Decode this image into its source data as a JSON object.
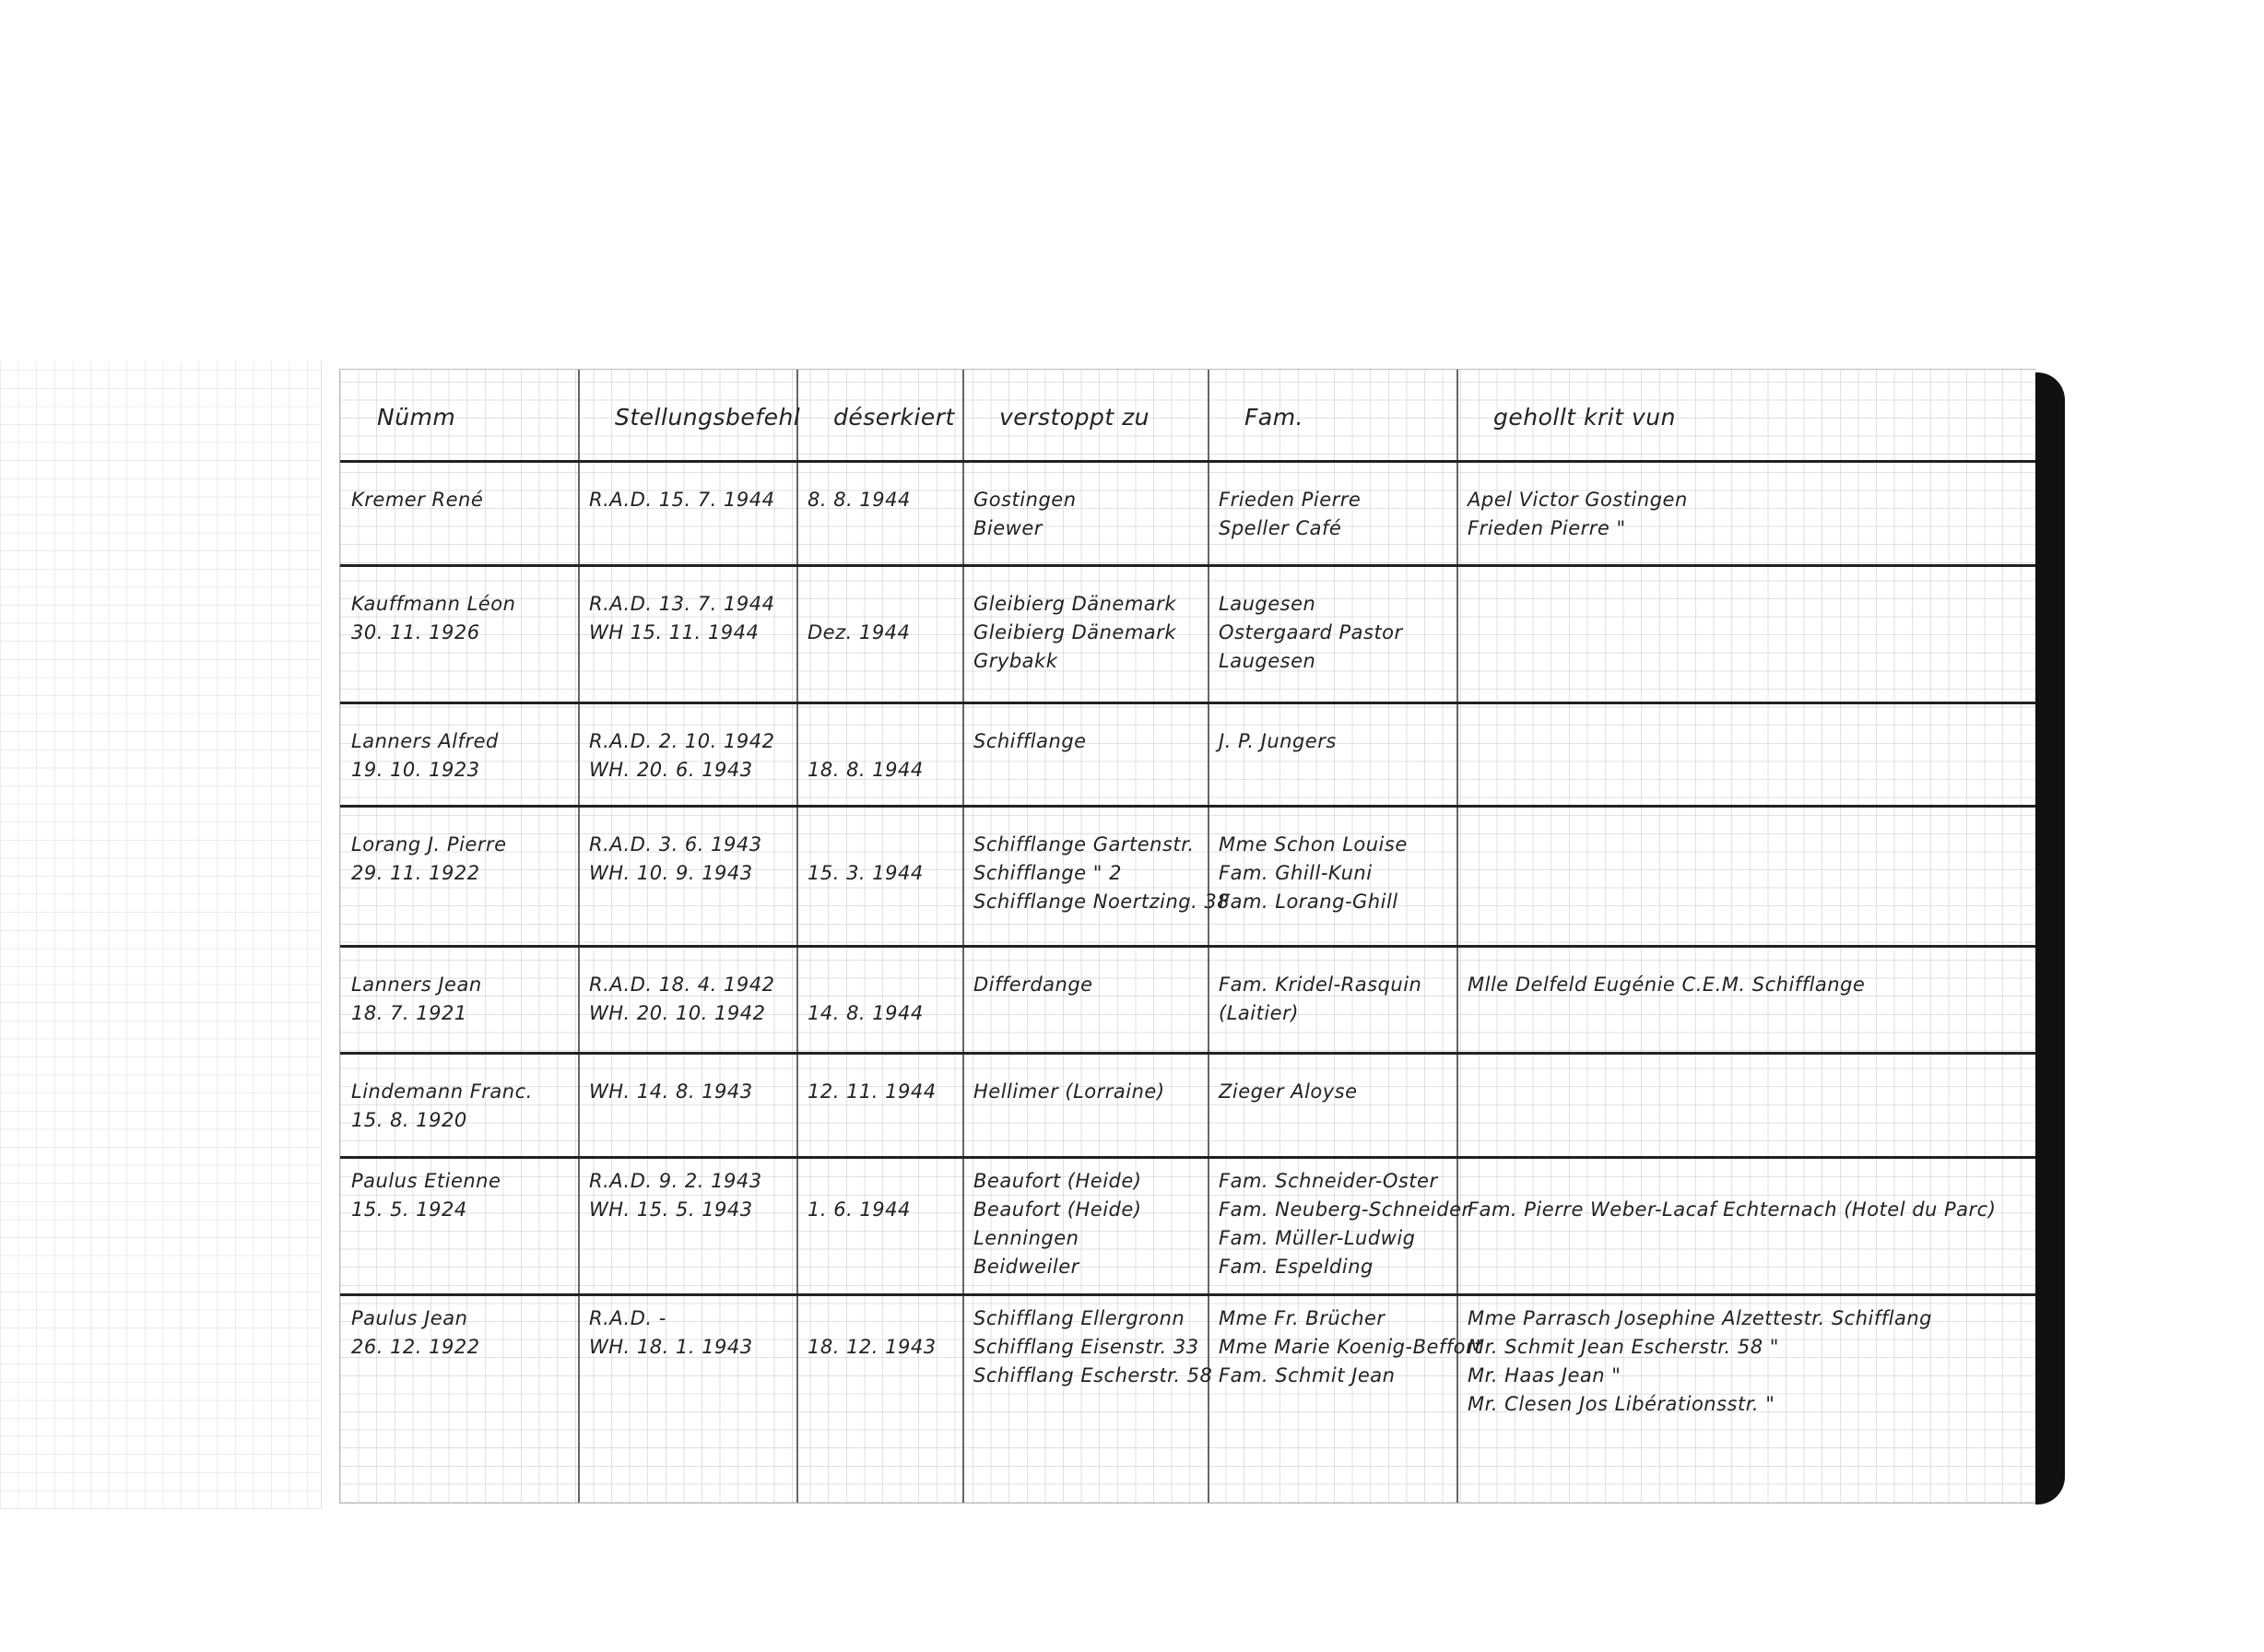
{
  "headers": [
    "Nümm",
    "Stellungsbefehl",
    "déserkiert",
    "verstoppt zu",
    "Fam.",
    "gehollt krit vun"
  ],
  "rows": [
    {
      "name": [
        "Kremer   René"
      ],
      "order": [
        "R.A.D. 15. 7. 1944"
      ],
      "deserted": [
        "8. 8. 1944"
      ],
      "hidden": [
        "Gostingen",
        "Biewer"
      ],
      "family": [
        "Frieden Pierre",
        "Speller Café"
      ],
      "fetched": [
        "Apel Victor Gostingen",
        "Frieden Pierre    \""
      ]
    },
    {
      "name": [
        "Kauffmann Léon",
        "  30. 11. 1926"
      ],
      "order": [
        "R.A.D. 13. 7. 1944",
        "WH    15. 11. 1944"
      ],
      "deserted": [
        "",
        "Dez. 1944"
      ],
      "hidden": [
        "Gleibierg Dänemark",
        "Gleibierg Dänemark",
        "Grybakk"
      ],
      "family": [
        "Laugesen",
        "Ostergaard Pastor",
        "Laugesen"
      ],
      "fetched": []
    },
    {
      "name": [
        "Lanners Alfred",
        "  19. 10. 1923"
      ],
      "order": [
        "R.A.D.  2. 10. 1942",
        "WH.   20. 6. 1943"
      ],
      "deserted": [
        "",
        "18. 8. 1944"
      ],
      "hidden": [
        "Schifflange"
      ],
      "family": [
        "J. P. Jungers"
      ],
      "fetched": []
    },
    {
      "name": [
        "Lorang J. Pierre",
        "  29. 11. 1922"
      ],
      "order": [
        "R.A.D.  3. 6. 1943",
        "WH.   10. 9. 1943"
      ],
      "deserted": [
        "",
        "15. 3. 1944"
      ],
      "hidden": [
        "Schifflange Gartenstr.",
        "Schifflange  \"   2",
        "Schifflange Noertzing. 38"
      ],
      "family": [
        "Mme Schon Louise",
        "Fam. Ghill-Kuni",
        "Fam. Lorang-Ghill"
      ],
      "fetched": []
    },
    {
      "name": [
        "Lanners Jean",
        "  18. 7. 1921"
      ],
      "order": [
        "R.A.D. 18. 4. 1942",
        "WH.   20. 10. 1942"
      ],
      "deserted": [
        "",
        "14. 8. 1944"
      ],
      "hidden": [
        "Differdange"
      ],
      "family": [
        "Fam. Kridel-Rasquin",
        "         (Laitier)"
      ],
      "fetched": [
        "Mlle Delfeld Eugénie C.E.M. Schifflange"
      ]
    },
    {
      "name": [
        "Lindemann Franc.",
        "  15. 8. 1920"
      ],
      "order": [
        "WH.  14. 8. 1943"
      ],
      "deserted": [
        "12. 11. 1944"
      ],
      "hidden": [
        "Hellimer (Lorraine)"
      ],
      "family": [
        "Zieger Aloyse"
      ],
      "fetched": []
    },
    {
      "name": [
        "Paulus Etienne",
        "  15. 5. 1924"
      ],
      "order": [
        "R.A.D.  9. 2. 1943",
        "WH.   15. 5. 1943"
      ],
      "deserted": [
        "",
        "1. 6. 1944"
      ],
      "hidden": [
        "Beaufort (Heide)",
        "Beaufort (Heide)",
        "Lenningen",
        "Beidweiler"
      ],
      "family": [
        "Fam. Schneider-Oster",
        "Fam. Neuberg-Schneider",
        "Fam. Müller-Ludwig",
        "Fam. Espelding"
      ],
      "fetched": [
        "",
        "Fam. Pierre Weber-Lacaf Echternach (Hotel du Parc)"
      ]
    },
    {
      "name": [
        "Paulus Jean",
        "  26. 12. 1922"
      ],
      "order": [
        "R.A.D.     -",
        "WH.   18. 1. 1943"
      ],
      "deserted": [
        "",
        "18. 12. 1943"
      ],
      "hidden": [
        "Schifflang Ellergronn",
        "Schifflang Eisenstr. 33",
        "Schifflang Escherstr. 58"
      ],
      "family": [
        "Mme Fr. Brücher",
        "Mme Marie Koenig-Beffort",
        "Fam. Schmit Jean"
      ],
      "fetched": [
        "Mme Parrasch Josephine  Alzettestr. Schifflang",
        "Mr. Schmit  Jean      Escherstr. 58  \"",
        "Mr. Haas   Jean                 \"",
        "Mr. Clesen  Jos      Libérationsstr.  \""
      ]
    }
  ]
}
